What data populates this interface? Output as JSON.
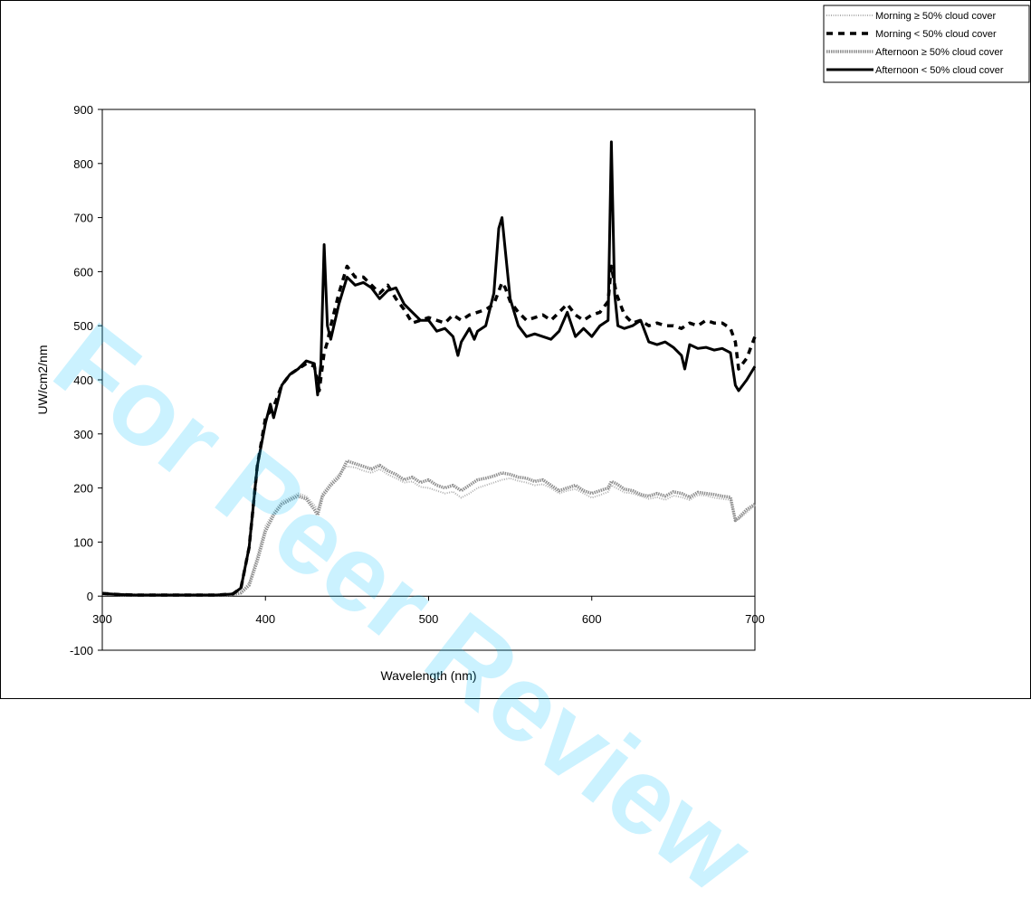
{
  "watermark": "For Peer Review",
  "chart_data": {
    "type": "line",
    "title": "",
    "xlabel": "Wavelength (nm)",
    "ylabel": "UW/cm2/nm",
    "xlim": [
      300,
      700
    ],
    "ylim": [
      -100,
      900
    ],
    "xticks": [
      300,
      400,
      500,
      600,
      700
    ],
    "yticks": [
      -100,
      0,
      100,
      200,
      300,
      400,
      500,
      600,
      700,
      800,
      900
    ],
    "grid": false,
    "legend_position": "top-right",
    "series": [
      {
        "name": "Morning ≥ 50% cloud cover",
        "color": "#b0b0b0",
        "style": "dotted-thin",
        "x": [
          300,
          310,
          320,
          330,
          340,
          350,
          360,
          370,
          380,
          385,
          390,
          395,
          400,
          405,
          410,
          415,
          420,
          425,
          430,
          432,
          435,
          440,
          445,
          450,
          455,
          460,
          465,
          470,
          475,
          480,
          485,
          490,
          495,
          500,
          505,
          510,
          515,
          520,
          525,
          530,
          535,
          540,
          545,
          550,
          555,
          560,
          565,
          570,
          575,
          580,
          585,
          590,
          595,
          600,
          605,
          610,
          612,
          615,
          620,
          625,
          630,
          635,
          640,
          645,
          650,
          655,
          660,
          665,
          670,
          675,
          680,
          685,
          688,
          690,
          695,
          700
        ],
        "y": [
          5,
          3,
          2,
          2,
          2,
          2,
          2,
          2,
          3,
          8,
          25,
          75,
          130,
          155,
          175,
          182,
          190,
          185,
          168,
          160,
          190,
          210,
          225,
          240,
          238,
          232,
          228,
          235,
          225,
          218,
          210,
          212,
          202,
          200,
          195,
          190,
          193,
          182,
          190,
          200,
          205,
          210,
          215,
          218,
          213,
          210,
          205,
          207,
          200,
          190,
          195,
          198,
          190,
          182,
          187,
          193,
          205,
          200,
          192,
          190,
          185,
          180,
          183,
          178,
          186,
          183,
          178,
          187,
          186,
          182,
          180,
          178,
          140,
          142,
          155,
          168
        ]
      },
      {
        "name": "Morning < 50% cloud cover",
        "color": "#000000",
        "style": "dashed",
        "x": [
          300,
          310,
          320,
          330,
          340,
          350,
          360,
          370,
          380,
          385,
          390,
          395,
          400,
          405,
          410,
          415,
          420,
          425,
          430,
          433,
          436,
          438,
          440,
          445,
          450,
          455,
          460,
          465,
          470,
          475,
          480,
          485,
          490,
          495,
          500,
          505,
          510,
          515,
          520,
          525,
          530,
          535,
          540,
          545,
          547,
          550,
          555,
          560,
          565,
          570,
          575,
          580,
          585,
          590,
          595,
          600,
          605,
          610,
          612,
          615,
          620,
          625,
          630,
          635,
          640,
          645,
          650,
          655,
          660,
          665,
          670,
          675,
          680,
          685,
          688,
          690,
          695,
          700
        ],
        "y": [
          5,
          3,
          2,
          2,
          2,
          2,
          2,
          2,
          4,
          15,
          90,
          240,
          330,
          350,
          390,
          410,
          420,
          430,
          425,
          380,
          450,
          470,
          500,
          560,
          610,
          590,
          590,
          575,
          560,
          575,
          550,
          530,
          505,
          510,
          515,
          510,
          505,
          520,
          510,
          520,
          525,
          530,
          540,
          580,
          570,
          545,
          525,
          510,
          515,
          520,
          510,
          525,
          540,
          520,
          510,
          520,
          525,
          545,
          610,
          560,
          520,
          505,
          510,
          500,
          505,
          500,
          500,
          495,
          505,
          500,
          510,
          505,
          505,
          495,
          470,
          420,
          440,
          480
        ]
      },
      {
        "name": "Afternoon ≥ 50% cloud cover",
        "color": "#909090",
        "style": "dotted-thick",
        "x": [
          300,
          310,
          320,
          330,
          340,
          350,
          360,
          370,
          380,
          385,
          390,
          395,
          400,
          405,
          410,
          415,
          420,
          425,
          430,
          432,
          435,
          440,
          445,
          450,
          455,
          460,
          465,
          470,
          475,
          480,
          485,
          490,
          495,
          500,
          505,
          510,
          515,
          520,
          525,
          530,
          535,
          540,
          545,
          550,
          555,
          560,
          565,
          570,
          575,
          580,
          585,
          590,
          595,
          600,
          605,
          610,
          612,
          615,
          620,
          625,
          630,
          635,
          640,
          645,
          650,
          655,
          660,
          665,
          670,
          675,
          680,
          685,
          688,
          690,
          695,
          700
        ],
        "y": [
          5,
          3,
          2,
          2,
          2,
          2,
          2,
          2,
          3,
          6,
          20,
          65,
          120,
          150,
          170,
          178,
          185,
          180,
          160,
          150,
          185,
          205,
          220,
          250,
          245,
          240,
          235,
          242,
          232,
          225,
          215,
          220,
          210,
          215,
          205,
          200,
          205,
          195,
          205,
          215,
          218,
          222,
          228,
          225,
          220,
          218,
          212,
          215,
          205,
          195,
          200,
          205,
          195,
          190,
          195,
          200,
          212,
          208,
          198,
          195,
          188,
          185,
          190,
          185,
          193,
          190,
          183,
          192,
          190,
          188,
          185,
          183,
          140,
          145,
          160,
          170
        ]
      },
      {
        "name": "Afternoon < 50% cloud cover",
        "color": "#000000",
        "style": "solid-thick",
        "x": [
          300,
          310,
          320,
          330,
          340,
          350,
          360,
          370,
          380,
          385,
          390,
          395,
          400,
          403,
          405,
          410,
          415,
          420,
          425,
          430,
          432,
          434,
          436,
          438,
          440,
          445,
          450,
          455,
          460,
          465,
          470,
          475,
          480,
          485,
          490,
          495,
          500,
          505,
          510,
          515,
          518,
          520,
          525,
          528,
          530,
          535,
          540,
          543,
          545,
          547,
          550,
          555,
          560,
          565,
          570,
          575,
          580,
          585,
          590,
          595,
          600,
          605,
          610,
          612,
          614,
          616,
          620,
          625,
          630,
          635,
          640,
          645,
          650,
          655,
          657,
          660,
          665,
          670,
          675,
          680,
          685,
          688,
          690,
          695,
          700
        ],
        "y": [
          5,
          3,
          2,
          2,
          2,
          2,
          2,
          2,
          4,
          15,
          90,
          240,
          320,
          355,
          330,
          390,
          410,
          420,
          435,
          430,
          372,
          430,
          650,
          500,
          475,
          540,
          590,
          575,
          580,
          570,
          550,
          565,
          570,
          540,
          525,
          510,
          510,
          490,
          495,
          480,
          445,
          470,
          495,
          475,
          490,
          500,
          560,
          680,
          700,
          640,
          550,
          500,
          480,
          485,
          480,
          475,
          490,
          525,
          480,
          495,
          480,
          500,
          510,
          840,
          560,
          500,
          495,
          500,
          510,
          470,
          465,
          470,
          460,
          445,
          420,
          465,
          458,
          460,
          455,
          458,
          450,
          390,
          380,
          400,
          425
        ]
      }
    ]
  }
}
